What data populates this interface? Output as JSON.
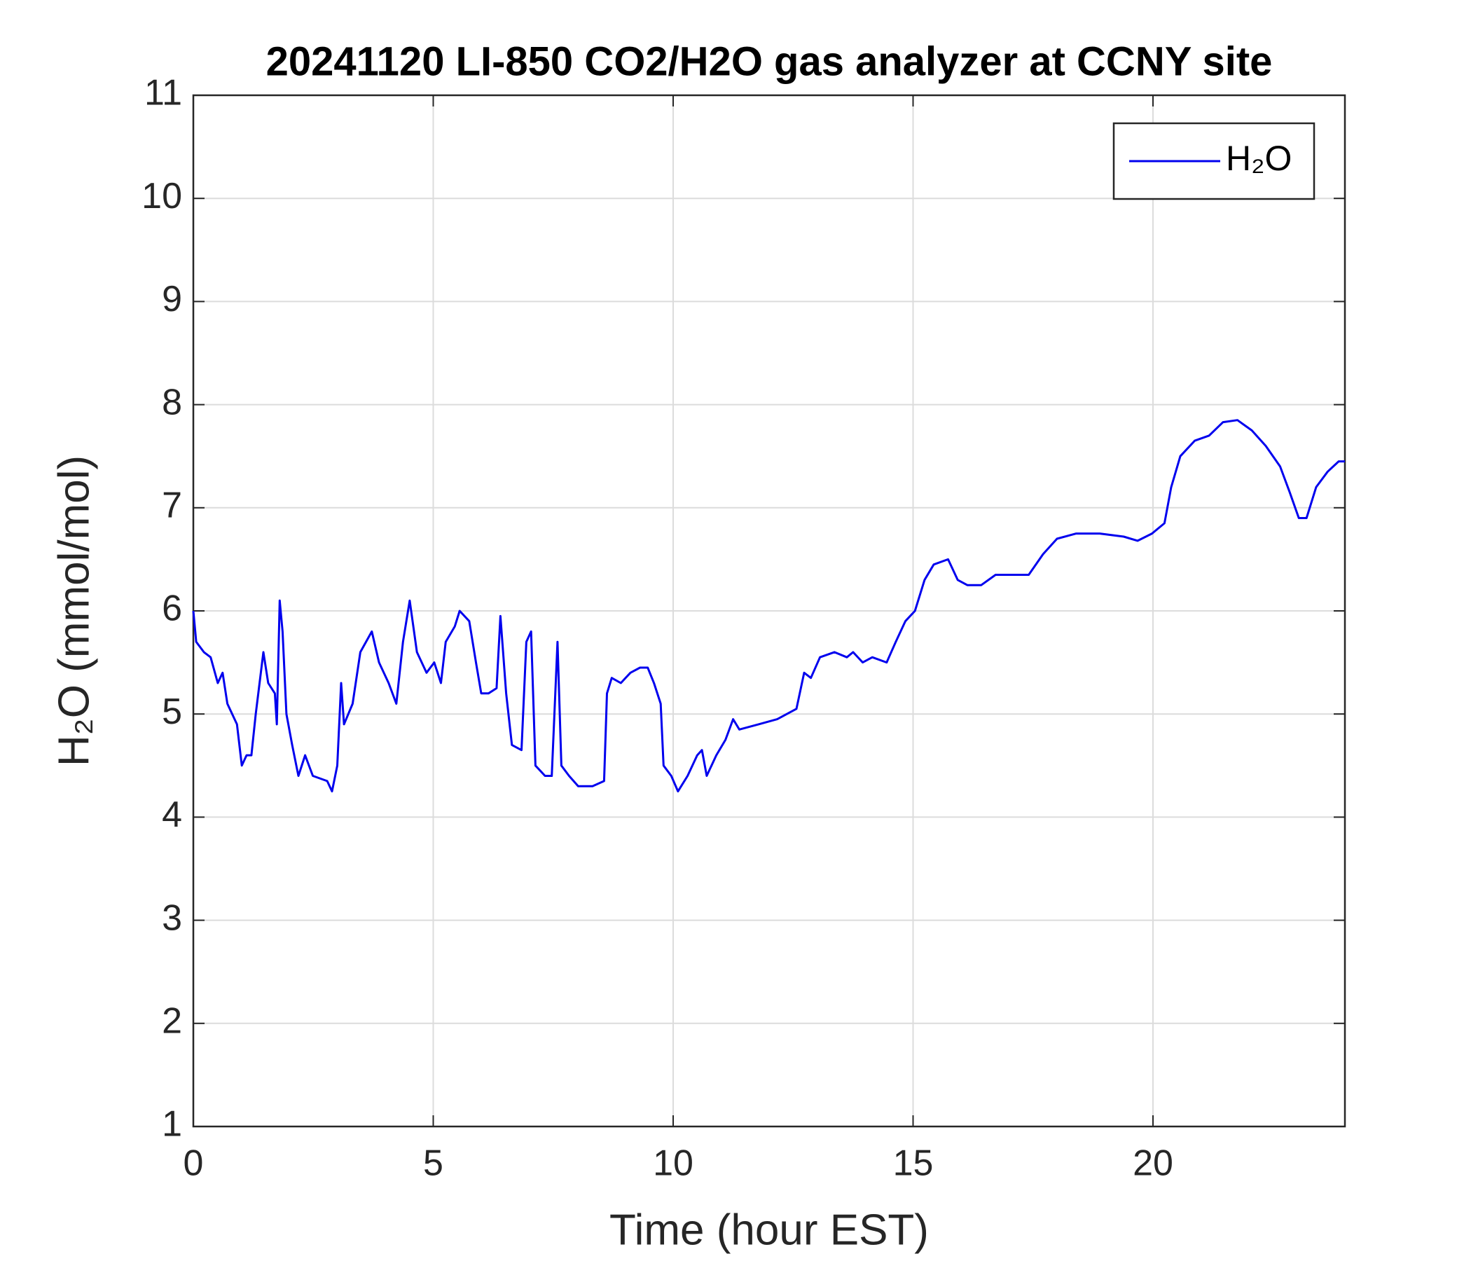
{
  "chart_data": {
    "type": "line",
    "title": "20241120 LI-850 CO2/H2O gas analyzer at CCNY site",
    "xlabel": "Time (hour EST)",
    "ylabel": "H₂O (mmol/mol)",
    "xlim": [
      0,
      24
    ],
    "xticks": [
      0,
      5,
      10,
      15,
      20
    ],
    "ylim": [
      1,
      11
    ],
    "yticks": [
      1,
      2,
      3,
      4,
      5,
      6,
      7,
      8,
      9,
      10,
      11
    ],
    "grid": true,
    "legend": "upper right",
    "x": [
      0,
      0.06,
      0.22,
      0.36,
      0.51,
      0.61,
      0.71,
      0.91,
      1.01,
      1.11,
      1.21,
      1.3,
      1.46,
      1.56,
      1.7,
      1.74,
      1.8,
      1.86,
      1.94,
      2.06,
      2.19,
      2.33,
      2.49,
      2.79,
      2.89,
      3.0,
      3.08,
      3.14,
      3.32,
      3.48,
      3.72,
      3.87,
      4.07,
      4.23,
      4.37,
      4.51,
      4.66,
      4.86,
      5.02,
      5.16,
      5.26,
      5.45,
      5.55,
      5.75,
      5.89,
      6.0,
      6.15,
      6.32,
      6.4,
      6.52,
      6.64,
      6.84,
      6.94,
      7.04,
      7.13,
      7.33,
      7.47,
      7.59,
      7.67,
      7.83,
      8.02,
      8.32,
      8.56,
      8.62,
      8.72,
      8.91,
      9.11,
      9.31,
      9.47,
      9.6,
      9.74,
      9.8,
      9.96,
      10.1,
      10.3,
      10.5,
      10.6,
      10.7,
      10.9,
      11.09,
      11.25,
      11.38,
      11.78,
      12.17,
      12.57,
      12.73,
      12.87,
      13.06,
      13.36,
      13.62,
      13.75,
      13.95,
      14.15,
      14.45,
      14.64,
      14.84,
      15.04,
      15.24,
      15.43,
      15.73,
      15.93,
      16.13,
      16.42,
      16.72,
      17.11,
      17.41,
      17.71,
      18.0,
      18.4,
      18.89,
      19.39,
      19.68,
      19.98,
      20.24,
      20.38,
      20.57,
      20.87,
      21.17,
      21.46,
      21.76,
      22.06,
      22.35,
      22.65,
      22.85,
      23.04,
      23.2,
      23.4,
      23.64,
      23.87,
      24.0
    ],
    "series": [
      {
        "name": "H₂O",
        "color": "#0000ee",
        "values": [
          6.0,
          5.7,
          5.6,
          5.55,
          5.3,
          5.4,
          5.1,
          4.9,
          4.5,
          4.6,
          4.6,
          5.0,
          5.6,
          5.3,
          5.2,
          4.9,
          6.1,
          5.8,
          5.0,
          4.7,
          4.4,
          4.6,
          4.4,
          4.35,
          4.25,
          4.5,
          5.3,
          4.9,
          5.1,
          5.6,
          5.8,
          5.5,
          5.3,
          5.1,
          5.7,
          6.1,
          5.6,
          5.4,
          5.5,
          5.3,
          5.7,
          5.85,
          6.0,
          5.9,
          5.5,
          5.2,
          5.2,
          5.25,
          5.95,
          5.2,
          4.7,
          4.65,
          5.7,
          5.8,
          4.5,
          4.4,
          4.4,
          5.7,
          4.5,
          4.4,
          4.3,
          4.3,
          4.35,
          5.2,
          5.35,
          5.3,
          5.4,
          5.45,
          5.45,
          5.3,
          5.1,
          4.5,
          4.4,
          4.25,
          4.4,
          4.6,
          4.65,
          4.4,
          4.6,
          4.75,
          4.95,
          4.85,
          4.9,
          4.95,
          5.05,
          5.4,
          5.35,
          5.55,
          5.6,
          5.55,
          5.6,
          5.5,
          5.55,
          5.5,
          5.7,
          5.9,
          6.0,
          6.3,
          6.45,
          6.5,
          6.3,
          6.25,
          6.25,
          6.35,
          6.35,
          6.35,
          6.55,
          6.7,
          6.75,
          6.75,
          6.72,
          6.68,
          6.75,
          6.85,
          7.2,
          7.5,
          7.65,
          7.7,
          7.83,
          7.85,
          7.75,
          7.6,
          7.4,
          7.15,
          6.9,
          6.9,
          7.2,
          7.35,
          7.45,
          7.45
        ]
      }
    ]
  }
}
